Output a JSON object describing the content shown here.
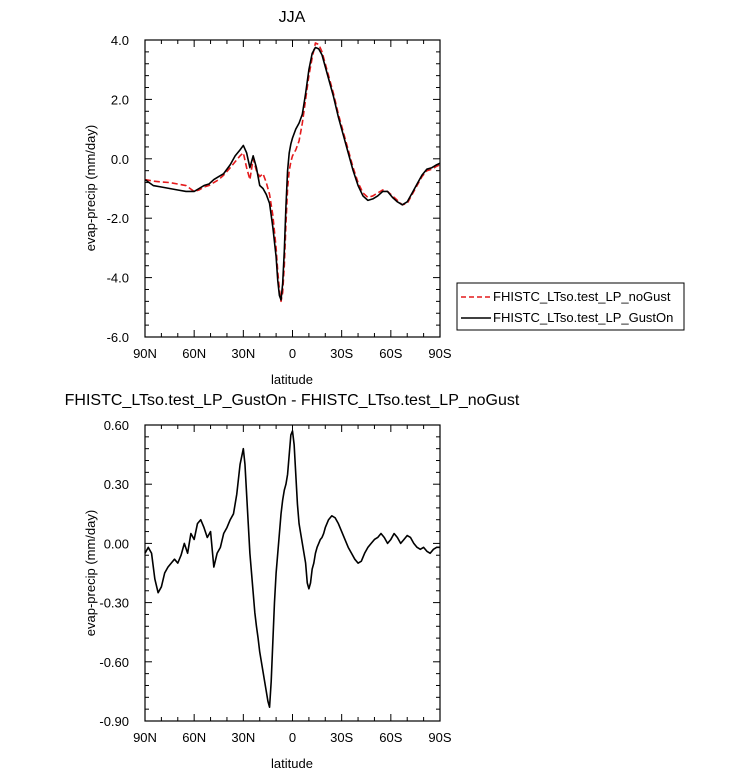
{
  "chart_data": [
    {
      "type": "line",
      "title": "JJA",
      "xlabel": "latitude",
      "ylabel": "evap-precip (mm/day)",
      "xlim": [
        90,
        -90
      ],
      "ylim": [
        -6,
        4
      ],
      "x_ticks": [
        90,
        60,
        30,
        0,
        -30,
        -60,
        -90
      ],
      "x_tick_labels": [
        "90N",
        "60N",
        "30N",
        "0",
        "30S",
        "60S",
        "90S"
      ],
      "y_ticks": [
        -6,
        -4,
        -2,
        0,
        2,
        4
      ],
      "y_tick_labels": [
        "-6.0",
        "-4.0",
        "-2.0",
        "0.0",
        "2.0",
        "4.0"
      ],
      "legend_position": "right",
      "series": [
        {
          "name": "FHISTC_LTso.test_LP_noGust",
          "color": "#e41a1c",
          "dash": "dashed",
          "x": [
            90,
            85,
            80,
            75,
            70,
            65,
            60,
            57,
            54,
            51,
            48,
            45,
            42,
            38,
            35,
            32,
            30,
            28,
            26,
            24,
            22,
            20,
            18,
            16,
            14,
            12,
            10,
            9,
            8,
            7,
            6,
            5,
            4,
            3,
            2,
            1,
            0,
            -2,
            -4,
            -6,
            -8,
            -10,
            -12,
            -14,
            -16,
            -18,
            -20,
            -22,
            -25,
            -28,
            -31,
            -34,
            -37,
            -40,
            -43,
            -46,
            -49,
            -52,
            -55,
            -58,
            -61,
            -64,
            -67,
            -70,
            -73,
            -76,
            -79,
            -82,
            -85,
            -88,
            -90
          ],
          "y": [
            -0.7,
            -0.75,
            -0.78,
            -0.8,
            -0.85,
            -0.9,
            -1.1,
            -1.05,
            -0.95,
            -0.9,
            -0.8,
            -0.7,
            -0.55,
            -0.3,
            -0.1,
            0.1,
            0.2,
            -0.3,
            -0.7,
            0.0,
            -0.4,
            -0.6,
            -0.5,
            -0.8,
            -1.2,
            -1.9,
            -3.0,
            -3.8,
            -4.4,
            -4.8,
            -4.5,
            -3.6,
            -2.2,
            -1.0,
            -0.4,
            -0.1,
            0.1,
            0.3,
            0.6,
            1.2,
            2.0,
            2.8,
            3.4,
            3.9,
            3.85,
            3.6,
            3.2,
            2.8,
            2.2,
            1.5,
            0.9,
            0.3,
            -0.3,
            -0.8,
            -1.15,
            -1.3,
            -1.25,
            -1.15,
            -1.05,
            -1.1,
            -1.25,
            -1.4,
            -1.55,
            -1.5,
            -1.2,
            -0.9,
            -0.6,
            -0.4,
            -0.35,
            -0.25,
            -0.2
          ]
        },
        {
          "name": "FHISTC_LTso.test_LP_GustOn",
          "color": "#000000",
          "dash": "solid",
          "x": [
            90,
            85,
            80,
            75,
            70,
            65,
            60,
            57,
            54,
            51,
            48,
            45,
            42,
            38,
            35,
            32,
            30,
            28,
            26,
            24,
            22,
            20,
            18,
            16,
            14,
            12,
            10,
            9,
            8,
            7,
            6,
            5,
            4,
            3,
            2,
            1,
            0,
            -2,
            -4,
            -6,
            -8,
            -10,
            -12,
            -14,
            -16,
            -18,
            -20,
            -22,
            -25,
            -28,
            -31,
            -34,
            -37,
            -40,
            -43,
            -46,
            -49,
            -52,
            -55,
            -58,
            -61,
            -64,
            -67,
            -70,
            -73,
            -76,
            -79,
            -82,
            -85,
            -88,
            -90
          ],
          "y": [
            -0.7,
            -0.9,
            -0.95,
            -1.0,
            -1.05,
            -1.1,
            -1.1,
            -1.0,
            -0.9,
            -0.85,
            -0.7,
            -0.6,
            -0.5,
            -0.2,
            0.1,
            0.3,
            0.45,
            0.2,
            -0.3,
            0.1,
            -0.3,
            -0.9,
            -1.0,
            -1.2,
            -1.5,
            -2.3,
            -3.3,
            -4.1,
            -4.6,
            -4.75,
            -4.2,
            -3.1,
            -1.6,
            -0.4,
            0.2,
            0.5,
            0.7,
            1.0,
            1.2,
            1.5,
            2.2,
            3.0,
            3.55,
            3.75,
            3.7,
            3.5,
            3.1,
            2.7,
            2.1,
            1.4,
            0.8,
            0.2,
            -0.4,
            -0.9,
            -1.25,
            -1.4,
            -1.35,
            -1.25,
            -1.1,
            -1.1,
            -1.3,
            -1.45,
            -1.55,
            -1.45,
            -1.15,
            -0.85,
            -0.55,
            -0.35,
            -0.3,
            -0.2,
            -0.15
          ]
        }
      ]
    },
    {
      "type": "line",
      "title": "FHISTC_LTso.test_LP_GustOn - FHISTC_LTso.test_LP_noGust",
      "xlabel": "latitude",
      "ylabel": "evap-precip (mm/day)",
      "xlim": [
        90,
        -90
      ],
      "ylim": [
        -0.9,
        0.6
      ],
      "x_ticks": [
        90,
        60,
        30,
        0,
        -30,
        -60,
        -90
      ],
      "x_tick_labels": [
        "90N",
        "60N",
        "30N",
        "0",
        "30S",
        "60S",
        "90S"
      ],
      "y_ticks": [
        -0.9,
        -0.6,
        -0.3,
        0.0,
        0.3,
        0.6
      ],
      "y_tick_labels": [
        "-0.90",
        "-0.60",
        "-0.30",
        "0.00",
        "0.30",
        "0.60"
      ],
      "series": [
        {
          "color": "#000000",
          "dash": "solid",
          "x": [
            90,
            88,
            86,
            84,
            82,
            80,
            78,
            76,
            74,
            72,
            70,
            68,
            66,
            64,
            62,
            60,
            58,
            56,
            54,
            52,
            50,
            48,
            46,
            44,
            42,
            40,
            38,
            36,
            34,
            32,
            30,
            29,
            28,
            27,
            26,
            25,
            24,
            23,
            22,
            21,
            20,
            19,
            18,
            17,
            16,
            15,
            14,
            13,
            12,
            11,
            10,
            9,
            8,
            7,
            6,
            5,
            4,
            3,
            2,
            1,
            0,
            -1,
            -2,
            -3,
            -4,
            -5,
            -6,
            -7,
            -8,
            -9,
            -10,
            -11,
            -12,
            -13,
            -14,
            -15,
            -16,
            -17,
            -18,
            -19,
            -20,
            -22,
            -24,
            -26,
            -28,
            -30,
            -32,
            -34,
            -36,
            -38,
            -40,
            -42,
            -44,
            -46,
            -48,
            -50,
            -52,
            -54,
            -56,
            -58,
            -60,
            -62,
            -64,
            -66,
            -68,
            -70,
            -72,
            -74,
            -76,
            -78,
            -80,
            -82,
            -84,
            -86,
            -88,
            -90
          ],
          "y": [
            -0.05,
            -0.02,
            -0.05,
            -0.18,
            -0.25,
            -0.22,
            -0.15,
            -0.12,
            -0.1,
            -0.08,
            -0.1,
            -0.06,
            0.0,
            -0.05,
            0.05,
            0.02,
            0.1,
            0.12,
            0.08,
            0.03,
            0.06,
            -0.12,
            -0.05,
            -0.02,
            0.05,
            0.08,
            0.12,
            0.15,
            0.25,
            0.4,
            0.48,
            0.4,
            0.25,
            0.1,
            -0.05,
            -0.15,
            -0.25,
            -0.35,
            -0.42,
            -0.48,
            -0.55,
            -0.6,
            -0.65,
            -0.7,
            -0.75,
            -0.8,
            -0.83,
            -0.7,
            -0.5,
            -0.3,
            -0.15,
            -0.05,
            0.05,
            0.15,
            0.22,
            0.27,
            0.3,
            0.35,
            0.45,
            0.55,
            0.57,
            0.5,
            0.35,
            0.2,
            0.1,
            0.05,
            0.0,
            -0.05,
            -0.1,
            -0.2,
            -0.23,
            -0.2,
            -0.13,
            -0.1,
            -0.05,
            -0.02,
            0.0,
            0.02,
            0.03,
            0.05,
            0.08,
            0.12,
            0.14,
            0.13,
            0.1,
            0.06,
            0.02,
            -0.02,
            -0.05,
            -0.08,
            -0.1,
            -0.09,
            -0.05,
            -0.02,
            0.0,
            0.02,
            0.03,
            0.05,
            0.03,
            0.0,
            0.02,
            0.05,
            0.03,
            0.0,
            0.02,
            0.04,
            0.03,
            0.0,
            -0.02,
            -0.03,
            -0.02,
            -0.04,
            -0.05,
            -0.03,
            -0.02,
            -0.02
          ]
        }
      ]
    }
  ]
}
